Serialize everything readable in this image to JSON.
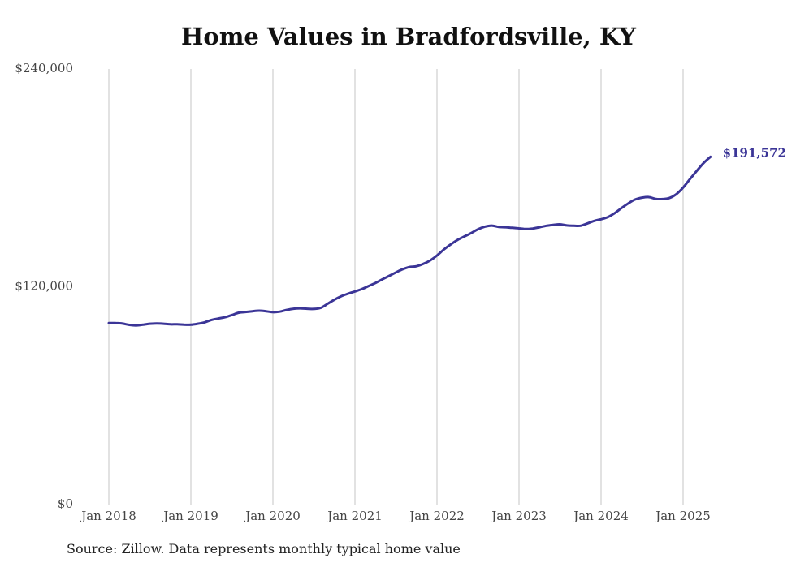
{
  "chart_data": {
    "type": "line",
    "title": "Home Values in Bradfordsville, KY",
    "xlabel": "",
    "ylabel": "",
    "source": "Source: Zillow. Data represents monthly typical home value",
    "ylim": [
      0,
      240000
    ],
    "y_ticks": [
      "$0",
      "$120,000",
      "$240,000"
    ],
    "y_tick_values": [
      0,
      120000,
      240000
    ],
    "x_ticks": [
      "Jan 2018",
      "Jan 2019",
      "Jan 2020",
      "Jan 2021",
      "Jan 2022",
      "Jan 2023",
      "Jan 2024",
      "Jan 2025"
    ],
    "x_tick_dates": [
      "2018-01",
      "2019-01",
      "2020-01",
      "2021-01",
      "2022-01",
      "2023-01",
      "2024-01",
      "2025-01"
    ],
    "grid": "vertical",
    "legend": "none",
    "line_color": "#3b3597",
    "end_label": "$191,572",
    "series": [
      {
        "x": [
          "2018-01",
          "2018-02",
          "2018-03",
          "2018-04",
          "2018-05",
          "2018-06",
          "2018-07",
          "2018-08",
          "2018-09",
          "2018-10",
          "2018-11",
          "2018-12",
          "2019-01",
          "2019-02",
          "2019-03",
          "2019-04",
          "2019-05",
          "2019-06",
          "2019-07",
          "2019-08",
          "2019-09",
          "2019-10",
          "2019-11",
          "2019-12",
          "2020-01",
          "2020-02",
          "2020-03",
          "2020-04",
          "2020-05",
          "2020-06",
          "2020-07",
          "2020-08",
          "2020-09",
          "2020-10",
          "2020-11",
          "2020-12",
          "2021-01",
          "2021-02",
          "2021-03",
          "2021-04",
          "2021-05",
          "2021-06",
          "2021-07",
          "2021-08",
          "2021-09",
          "2021-10",
          "2021-11",
          "2021-12",
          "2022-01",
          "2022-02",
          "2022-03",
          "2022-04",
          "2022-05",
          "2022-06",
          "2022-07",
          "2022-08",
          "2022-09",
          "2022-10",
          "2022-11",
          "2022-12",
          "2023-01",
          "2023-02",
          "2023-03",
          "2023-04",
          "2023-05",
          "2023-06",
          "2023-07",
          "2023-08",
          "2023-09",
          "2023-10",
          "2023-11",
          "2023-12",
          "2024-01",
          "2024-02",
          "2024-03",
          "2024-04",
          "2024-05",
          "2024-06",
          "2024-07",
          "2024-08",
          "2024-09",
          "2024-10",
          "2024-11",
          "2024-12",
          "2025-01",
          "2025-02",
          "2025-03",
          "2025-04",
          "2025-05"
        ],
        "y": [
          100000,
          100000,
          99700,
          99000,
          98700,
          99100,
          99600,
          99800,
          99600,
          99300,
          99300,
          99100,
          99100,
          99600,
          100400,
          101700,
          102500,
          103200,
          104400,
          105700,
          106100,
          106500,
          106800,
          106500,
          106000,
          106300,
          107200,
          107900,
          108100,
          107900,
          107800,
          108400,
          110600,
          112900,
          114800,
          116200,
          117400,
          118700,
          120400,
          122100,
          124100,
          126000,
          127900,
          129700,
          130900,
          131300,
          132600,
          134500,
          137200,
          140500,
          143300,
          145800,
          147700,
          149600,
          151700,
          153100,
          153700,
          153000,
          152800,
          152500,
          152200,
          151800,
          152100,
          152800,
          153600,
          154100,
          154400,
          153800,
          153600,
          153600,
          154900,
          156300,
          157200,
          158400,
          160600,
          163400,
          166000,
          168100,
          169100,
          169400,
          168400,
          168300,
          168900,
          171000,
          174600,
          179300,
          183800,
          188200,
          191572
        ]
      }
    ]
  }
}
